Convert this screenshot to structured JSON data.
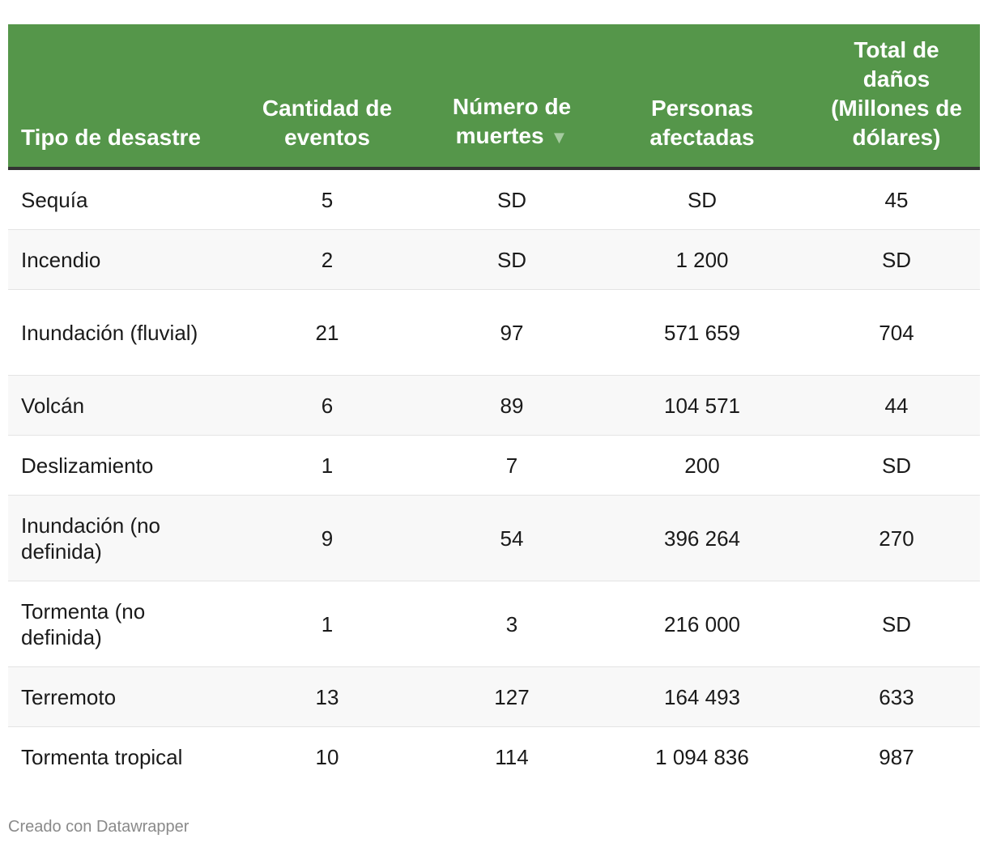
{
  "chart_data": {
    "type": "table",
    "columns": [
      "Tipo de desastre",
      "Cantidad de eventos",
      "Número de muertes",
      "Personas afectadas",
      "Total de daños (Millones de dólares)"
    ],
    "sort": {
      "column": "Número de muertes",
      "indicator": "▼"
    },
    "rows": [
      [
        "Sequía",
        "5",
        "SD",
        "SD",
        "45"
      ],
      [
        "Incendio",
        "2",
        "SD",
        "1 200",
        "SD"
      ],
      [
        "Inundación (fluvial)",
        "21",
        "97",
        "571 659",
        "704"
      ],
      [
        "Volcán",
        "6",
        "89",
        "104 571",
        "44"
      ],
      [
        "Deslizamiento",
        "1",
        "7",
        "200",
        "SD"
      ],
      [
        "Inundación (no definida)",
        "9",
        "54",
        "396 264",
        "270"
      ],
      [
        "Tormenta (no definida)",
        "1",
        "3",
        "216 000",
        "SD"
      ],
      [
        "Terremoto",
        "13",
        "127",
        "164 493",
        "633"
      ],
      [
        "Tormenta tropical",
        "10",
        "114",
        "1 094 836",
        "987"
      ]
    ],
    "colors": {
      "header_bg": "#55964a",
      "header_text": "#ffffff",
      "header_rule": "#333333",
      "stripe": "#f8f8f8",
      "sort_arrow": "#a6cba0"
    }
  },
  "footer": {
    "credit": "Creado con Datawrapper"
  }
}
